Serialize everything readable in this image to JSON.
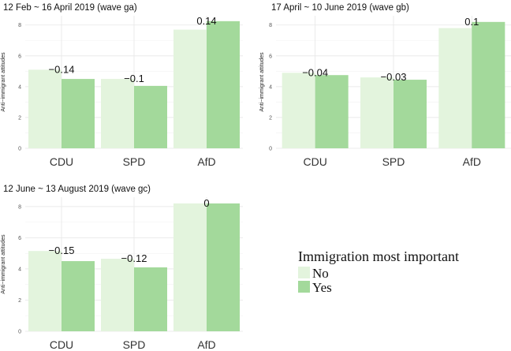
{
  "chart_data": [
    {
      "type": "bar",
      "title": "12 Feb ~ 16 April 2019 (wave ga)",
      "ylabel": "Anti−immigrant attitudes",
      "xlabel": "",
      "ylim": [
        0,
        8.6
      ],
      "yticks": [
        0,
        2,
        4,
        6,
        8
      ],
      "categories": [
        "CDU",
        "SPD",
        "AfD"
      ],
      "series": [
        {
          "name": "No",
          "values": [
            5.1,
            4.5,
            7.7
          ]
        },
        {
          "name": "Yes",
          "values": [
            4.5,
            4.05,
            8.25
          ]
        }
      ],
      "labels": [
        "−0.14",
        "−0.1",
        "0.14"
      ]
    },
    {
      "type": "bar",
      "title": "17 April ~ 10 June 2019 (wave gb)",
      "ylabel": "Anti−immigrant attitudes",
      "xlabel": "",
      "ylim": [
        0,
        8.6
      ],
      "yticks": [
        0,
        2,
        4,
        6,
        8
      ],
      "categories": [
        "CDU",
        "SPD",
        "AfD"
      ],
      "series": [
        {
          "name": "No",
          "values": [
            4.9,
            4.6,
            7.8
          ]
        },
        {
          "name": "Yes",
          "values": [
            4.75,
            4.45,
            8.2
          ]
        }
      ],
      "labels": [
        "−0.04",
        "−0.03",
        "0.1"
      ]
    },
    {
      "type": "bar",
      "title": "12 June ~ 13 August 2019 (wave gc)",
      "ylabel": "Anti−immigrant attitudes",
      "xlabel": "",
      "ylim": [
        0,
        8.6
      ],
      "yticks": [
        0,
        2,
        4,
        6,
        8
      ],
      "categories": [
        "CDU",
        "SPD",
        "AfD"
      ],
      "series": [
        {
          "name": "No",
          "values": [
            5.15,
            4.65,
            8.2
          ]
        },
        {
          "name": "Yes",
          "values": [
            4.5,
            4.1,
            8.2
          ]
        }
      ],
      "labels": [
        "−0.15",
        "−0.12",
        "0"
      ]
    }
  ],
  "legend": {
    "title": "Immigration most important",
    "items": [
      {
        "label": "No",
        "color": "#e3f4dd"
      },
      {
        "label": "Yes",
        "color": "#a3d99b"
      }
    ]
  }
}
